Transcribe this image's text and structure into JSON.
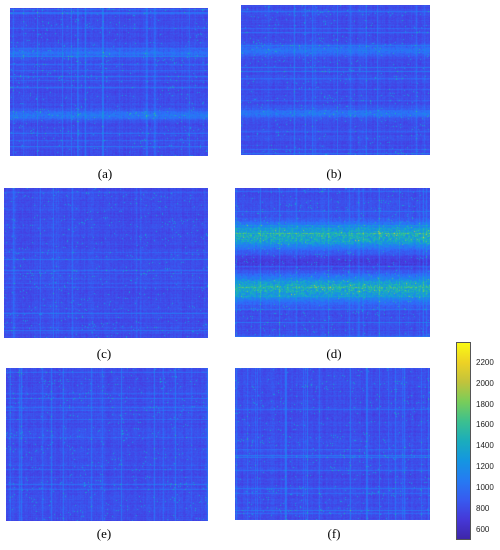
{
  "chart_data": {
    "type": "heatmap",
    "panels": [
      {
        "label": "(a)",
        "pattern": "faint-bands"
      },
      {
        "label": "(b)",
        "pattern": "faint-bands"
      },
      {
        "label": "(c)",
        "pattern": "uniform"
      },
      {
        "label": "(d)",
        "pattern": "strong-bands"
      },
      {
        "label": "(e)",
        "pattern": "uniform"
      },
      {
        "label": "(f)",
        "pattern": "uniform"
      }
    ],
    "colorbar": {
      "min": 500,
      "max": 2400,
      "ticks": [
        "2200",
        "2000",
        "1800",
        "1600",
        "1400",
        "1200",
        "1000",
        "800",
        "600"
      ],
      "colormap": "parula"
    }
  }
}
